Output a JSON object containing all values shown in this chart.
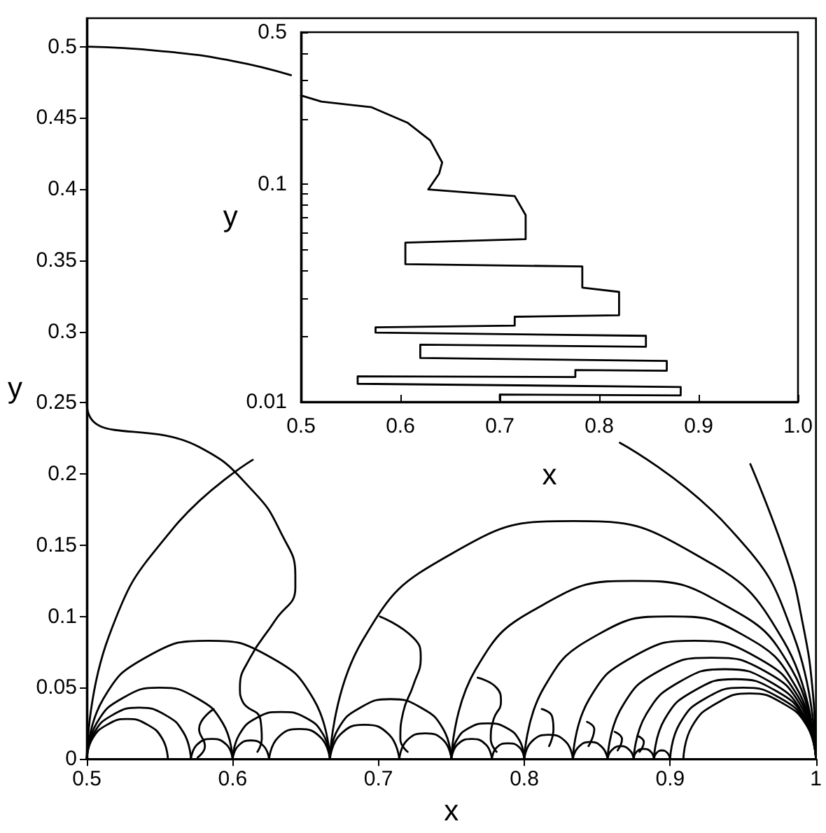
{
  "chart_data": [
    {
      "type": "line",
      "xlabel": "x",
      "ylabel": "y",
      "xlim": [
        0.5,
        1
      ],
      "ylim": [
        0,
        0.52
      ],
      "xticks": [
        0.5,
        0.6,
        0.7,
        0.8,
        0.9,
        1
      ],
      "yticks": [
        0,
        0.05,
        0.1,
        0.15,
        0.2,
        0.25,
        0.3,
        0.35,
        0.4,
        0.45,
        0.5
      ],
      "marker": "none",
      "series": [
        {
          "color": "#000000",
          "x": [
            0.5,
            0.55,
            0.6,
            0.64,
            0.8,
            0.955,
            0.98,
            0.99,
            0.998,
            1
          ],
          "values": [
            0.5,
            0.497,
            0.49,
            0.48,
            null,
            0.207,
            0.14,
            0.1,
            0.045,
            0
          ]
        },
        {
          "color": "#000000",
          "x": [
            0.5,
            0.5151,
            0.5585,
            0.6138,
            0.75,
            0.8655,
            0.9415,
            0.9849,
            1
          ],
          "values": [
            0,
            0.086,
            0.161,
            0.21,
            null,
            0.222,
            0.161,
            0.086,
            0
          ]
        },
        {
          "color": "#000000",
          "x": [
            0.6667,
            0.689,
            0.75,
            0.8333,
            0.9167,
            0.9777,
            1
          ],
          "values": [
            0,
            0.083,
            0.144,
            0.167,
            0.144,
            0.083,
            0
          ]
        },
        {
          "color": "#000000",
          "x": [
            0.75,
            0.7667,
            0.8125,
            0.875,
            0.9375,
            0.9833,
            1
          ],
          "values": [
            0,
            0.063,
            0.108,
            0.125,
            0.108,
            0.063,
            0
          ]
        },
        {
          "color": "#000000",
          "x": [
            0.8,
            0.8134,
            0.85,
            0.9,
            0.95,
            0.9866,
            1
          ],
          "values": [
            0,
            0.05,
            0.087,
            0.1,
            0.087,
            0.05,
            0
          ]
        },
        {
          "color": "#000000",
          "x": [
            0.8333,
            0.8445,
            0.875,
            0.9167,
            0.9583,
            0.9888,
            1
          ],
          "values": [
            0,
            0.042,
            0.072,
            0.083,
            0.072,
            0.042,
            0
          ]
        },
        {
          "color": "#000000",
          "x": [
            0.8571,
            0.8667,
            0.8929,
            0.9286,
            0.9643,
            0.9904,
            1
          ],
          "values": [
            0,
            0.036,
            0.062,
            0.071,
            0.062,
            0.036,
            0
          ]
        },
        {
          "color": "#000000",
          "x": [
            0.875,
            0.8834,
            0.9063,
            0.9375,
            0.9688,
            0.9916,
            1
          ],
          "values": [
            0,
            0.031,
            0.054,
            0.063,
            0.054,
            0.031,
            0
          ]
        },
        {
          "color": "#000000",
          "x": [
            0.8889,
            0.8963,
            0.9167,
            0.9444,
            0.9722,
            0.9926,
            1
          ],
          "values": [
            0,
            0.028,
            0.048,
            0.056,
            0.048,
            0.028,
            0
          ]
        },
        {
          "color": "#000000",
          "x": [
            0.9,
            0.9067,
            0.925,
            0.95,
            0.975,
            0.9933,
            1
          ],
          "values": [
            0,
            0.025,
            0.043,
            0.05,
            0.043,
            0.025,
            0
          ]
        },
        {
          "color": "#000000",
          "x": [
            0.9091,
            0.9151,
            0.9318,
            0.9545,
            0.9773,
            0.9939,
            1
          ],
          "values": [
            0,
            0.023,
            0.039,
            0.046,
            0.039,
            0.023,
            0
          ]
        },
        {
          "color": "#000000",
          "x": [
            0.5,
            0.5112,
            0.5417,
            0.5833,
            0.625,
            0.6555,
            0.6667
          ],
          "values": [
            0,
            0.042,
            0.072,
            0.083,
            0.072,
            0.042,
            0
          ]
        },
        {
          "color": "#000000",
          "x": [
            0.5,
            0.5067,
            0.525,
            0.55,
            0.575,
            0.5933,
            0.6
          ],
          "values": [
            0,
            0.025,
            0.043,
            0.05,
            0.043,
            0.025,
            0
          ]
        },
        {
          "color": "#000000",
          "x": [
            0.5,
            0.5048,
            0.5179,
            0.5357,
            0.5536,
            0.5666,
            0.5714
          ],
          "values": [
            0,
            0.018,
            0.031,
            0.036,
            0.031,
            0.018,
            0
          ]
        },
        {
          "color": "#000000",
          "x": [
            0.5,
            0.5037,
            0.5139,
            0.5278,
            0.5417,
            0.5519,
            0.5556
          ],
          "values": [
            0,
            0.014,
            0.024,
            0.028,
            0.024,
            0.014,
            0
          ]
        },
        {
          "color": "#000000",
          "x": [
            0.6,
            0.6045,
            0.6167,
            0.6333,
            0.65,
            0.6622,
            0.6667
          ],
          "values": [
            0,
            0.017,
            0.029,
            0.033,
            0.029,
            0.017,
            0
          ]
        },
        {
          "color": "#000000",
          "x": [
            0.5714,
            0.5756,
            0.5857,
            0.5958,
            0.6
          ],
          "values": [
            0,
            0.01,
            0.014,
            0.01,
            0
          ]
        },
        {
          "color": "#000000",
          "x": [
            0.6,
            0.6037,
            0.6125,
            0.6213,
            0.625
          ],
          "values": [
            0,
            0.009,
            0.013,
            0.009,
            0
          ]
        },
        {
          "color": "#000000",
          "x": [
            0.625,
            0.6311,
            0.6458,
            0.6605,
            0.6667
          ],
          "values": [
            0,
            0.015,
            0.021,
            0.015,
            0
          ]
        },
        {
          "color": "#000000",
          "x": [
            0.6667,
            0.6723,
            0.6875,
            0.7083,
            0.7292,
            0.7444,
            0.75
          ],
          "values": [
            0,
            0.021,
            0.036,
            0.042,
            0.036,
            0.021,
            0
          ]
        },
        {
          "color": "#000000",
          "x": [
            0.6667,
            0.6737,
            0.6905,
            0.7073,
            0.7143
          ],
          "values": [
            0,
            0.017,
            0.024,
            0.017,
            0
          ]
        },
        {
          "color": "#000000",
          "x": [
            0.7143,
            0.7195,
            0.7321,
            0.7447,
            0.75
          ],
          "values": [
            0,
            0.013,
            0.018,
            0.013,
            0
          ]
        },
        {
          "color": "#000000",
          "x": [
            0.75,
            0.7535,
            0.7625,
            0.775,
            0.7875,
            0.7967,
            0.8
          ],
          "values": [
            0,
            0.013,
            0.022,
            0.025,
            0.022,
            0.013,
            0
          ]
        },
        {
          "color": "#000000",
          "x": [
            0.75,
            0.7541,
            0.7639,
            0.7737,
            0.7778
          ],
          "values": [
            0,
            0.01,
            0.014,
            0.01,
            0
          ]
        },
        {
          "color": "#000000",
          "x": [
            0.7778,
            0.781,
            0.7889,
            0.7968,
            0.8
          ],
          "values": [
            0,
            0.008,
            0.011,
            0.008,
            0
          ]
        },
        {
          "color": "#000000",
          "x": [
            0.8,
            0.8049,
            0.8167,
            0.8285,
            0.8333
          ],
          "values": [
            0,
            0.012,
            0.017,
            0.012,
            0
          ]
        },
        {
          "color": "#000000",
          "x": [
            0.8333,
            0.8368,
            0.8452,
            0.8536,
            0.8571
          ],
          "values": [
            0,
            0.008,
            0.012,
            0.008,
            0
          ]
        },
        {
          "color": "#000000",
          "x": [
            0.8571,
            0.8598,
            0.8661,
            0.8724,
            0.875
          ],
          "values": [
            0,
            0.006,
            0.009,
            0.006,
            0
          ]
        },
        {
          "color": "#000000",
          "x": [
            0.875,
            0.877,
            0.8819,
            0.8868,
            0.8889
          ],
          "values": [
            0,
            0.005,
            0.007,
            0.005,
            0
          ]
        },
        {
          "color": "#000000",
          "x": [
            0.8889,
            0.8905,
            0.8944,
            0.8983,
            0.9
          ],
          "values": [
            0,
            0.004,
            0.006,
            0.004,
            0
          ]
        },
        {
          "color": "#000000",
          "x": [
            0.5,
            0.5,
            0.577,
            0.614,
            0.634,
            0.643,
            0.643,
            0.629,
            0.612,
            0.605,
            0.607,
            0.619,
            0.62,
            0.617
          ],
          "values": [
            0.5,
            0.25,
            0.219,
            0.188,
            0.157,
            0.129,
            0.12,
            0.097,
            0.071,
            0.05,
            0.04,
            0.028,
            0.014,
            0.005
          ]
        },
        {
          "color": "#000000",
          "x": [
            0.587,
            0.577,
            0.581,
            0.576
          ],
          "values": [
            0.035,
            0.021,
            0.009,
            0.001
          ]
        },
        {
          "color": "#000000",
          "x": [
            0.701,
            0.724,
            0.729,
            0.724,
            0.717,
            0.715,
            0.72
          ],
          "values": [
            0.1,
            0.085,
            0.071,
            0.052,
            0.033,
            0.014,
            0.005
          ]
        },
        {
          "color": "#000000",
          "x": [
            0.768,
            0.781,
            0.784,
            0.779,
            0.777,
            0.781
          ],
          "values": [
            0.057,
            0.05,
            0.04,
            0.028,
            0.014,
            0.005
          ]
        },
        {
          "color": "#000000",
          "x": [
            0.812,
            0.819,
            0.82,
            0.817
          ],
          "values": [
            0.035,
            0.03,
            0.021,
            0.009
          ]
        },
        {
          "color": "#000000",
          "x": [
            0.843,
            0.848,
            0.844
          ],
          "values": [
            0.026,
            0.021,
            0.009
          ]
        },
        {
          "color": "#000000",
          "x": [
            0.862,
            0.867,
            0.864
          ],
          "values": [
            0.019,
            0.014,
            0.006
          ]
        },
        {
          "color": "#000000",
          "x": [
            0.878,
            0.882,
            0.879
          ],
          "values": [
            0.016,
            0.012,
            0.005
          ]
        }
      ]
    },
    {
      "type": "line",
      "xlabel": "x",
      "ylabel": "y",
      "log": "y",
      "xlim": [
        0.5,
        1
      ],
      "ylim": [
        0.01,
        0.5
      ],
      "xticks": [
        0.5,
        0.6,
        0.7,
        0.8,
        0.9,
        {
          "value": 1,
          "label": "1.0"
        }
      ],
      "yticks": [
        0.01,
        {
          "value": 0.02,
          "label": null
        },
        {
          "value": 0.03,
          "label": null
        },
        {
          "value": 0.04,
          "label": null
        },
        {
          "value": 0.05,
          "label": null
        },
        {
          "value": 0.06,
          "label": null
        },
        {
          "value": 0.07,
          "label": null
        },
        {
          "value": 0.08,
          "label": null
        },
        {
          "value": 0.09,
          "label": null
        },
        0.1,
        {
          "value": 0.2,
          "label": null
        },
        {
          "value": 0.3,
          "label": null
        },
        {
          "value": 0.4,
          "label": null
        },
        0.5
      ],
      "marker": "none",
      "series": [
        {
          "color": "#000000",
          "x": [
            0.5,
            0.5205,
            0.571,
            0.607,
            0.63,
            0.642,
            0.639,
            0.628,
            0.715,
            0.726,
            0.726,
            0.605,
            0.605,
            0.783,
            0.783,
            0.82,
            0.82,
            0.715,
            0.715,
            0.575,
            0.575,
            0.847,
            0.847,
            0.62,
            0.62,
            0.868,
            0.868,
            0.776,
            0.776,
            0.557,
            0.557,
            0.882,
            0.882,
            0.7,
            0.7
          ],
          "values": [
            0.256,
            0.24,
            0.226,
            0.192,
            0.159,
            0.126,
            0.112,
            0.0946,
            0.0882,
            0.0722,
            0.0559,
            0.0539,
            0.0429,
            0.0419,
            0.0335,
            0.032,
            0.025,
            0.0246,
            0.0224,
            0.022,
            0.0208,
            0.0201,
            0.0179,
            0.0183,
            0.0159,
            0.0154,
            0.0139,
            0.014,
            0.013,
            0.0131,
            0.0121,
            0.0117,
            0.0107,
            0.0108,
            0.0102
          ]
        }
      ]
    }
  ]
}
